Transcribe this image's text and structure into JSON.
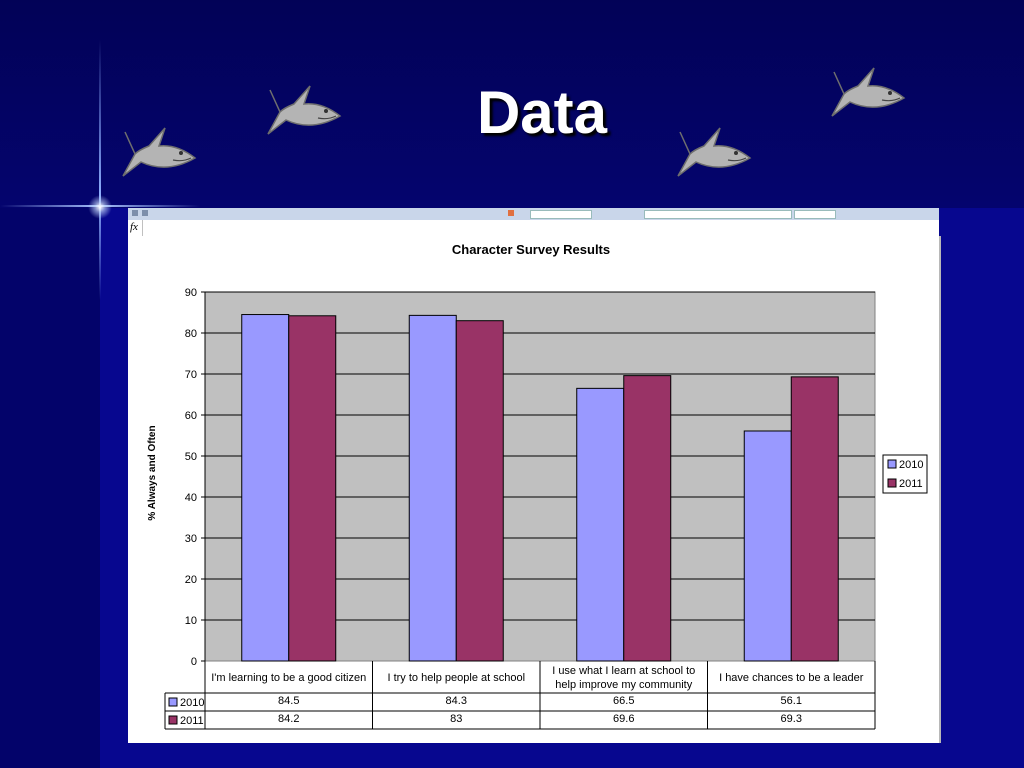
{
  "slide": {
    "title": "Data",
    "icons": [
      "shark-icon",
      "shark-icon",
      "shark-icon",
      "shark-icon"
    ],
    "colors": {
      "background": "#07078f",
      "header": "#020257",
      "title": "#ffffff"
    }
  },
  "spreadsheet": {
    "fx_label": "fx"
  },
  "chart_data": {
    "type": "bar",
    "title": "Character Survey Results",
    "ylabel": "% Always and Often",
    "xlabel": "",
    "ylim": [
      0,
      90
    ],
    "yticks": [
      0,
      10,
      20,
      30,
      40,
      50,
      60,
      70,
      80,
      90
    ],
    "grid": true,
    "legend": "right",
    "data_table": true,
    "categories": [
      [
        "I'm learning to be a good citizen"
      ],
      [
        "I try to help people at school"
      ],
      [
        "I use what I learn at school to",
        "help improve my community"
      ],
      [
        "I have chances to be a leader"
      ]
    ],
    "series": [
      {
        "name": "2010",
        "color": "#9999ff",
        "values": [
          84.5,
          84.3,
          66.5,
          56.1
        ]
      },
      {
        "name": "2011",
        "color": "#993366",
        "values": [
          84.2,
          83,
          69.6,
          69.3
        ]
      }
    ],
    "plot_background": "#c0c0c0"
  }
}
